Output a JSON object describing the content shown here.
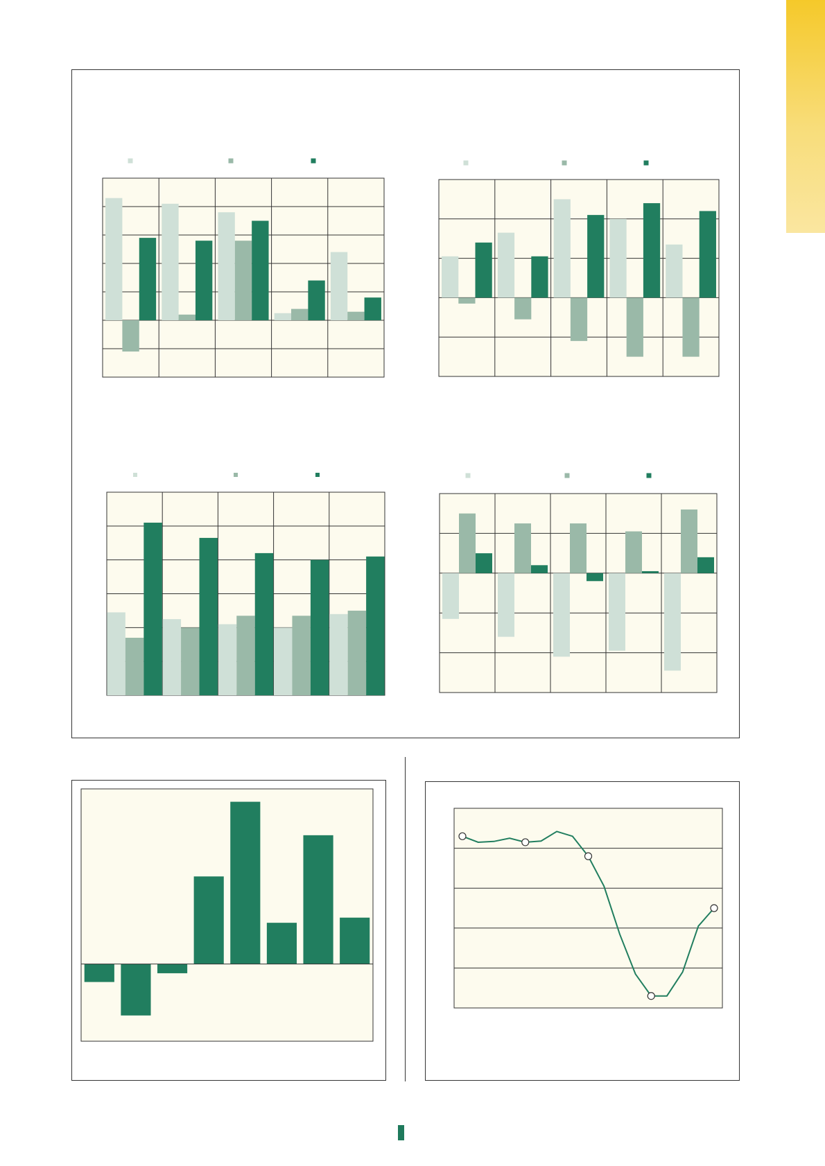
{
  "colors": {
    "plot_bg": "#fdfbee",
    "series_light": "#cfe0d7",
    "series_mid": "#9ab9a8",
    "series_dark": "#217e5f",
    "grid": "#333333",
    "side_tab": "#f5c92a"
  },
  "chart_data": [
    {
      "type": "bar",
      "ylim": [
        -2,
        5
      ],
      "grid": true,
      "legend": "top",
      "categories": [
        "",
        "",
        "",
        "",
        ""
      ],
      "series": [
        {
          "color": "series_light",
          "values": [
            4.3,
            4.1,
            3.8,
            0.25,
            2.4
          ]
        },
        {
          "color": "series_mid",
          "values": [
            -1.1,
            0.2,
            2.8,
            0.4,
            0.3
          ]
        },
        {
          "color": "series_dark",
          "values": [
            2.9,
            2.8,
            3.5,
            1.4,
            0.8
          ]
        }
      ]
    },
    {
      "type": "bar",
      "ylim": [
        -2,
        3
      ],
      "grid": true,
      "legend": "top",
      "categories": [
        "",
        "",
        "",
        "",
        ""
      ],
      "series": [
        {
          "color": "series_light",
          "values": [
            1.05,
            1.65,
            2.5,
            2.0,
            1.35
          ]
        },
        {
          "color": "series_mid",
          "values": [
            -0.15,
            -0.55,
            -1.1,
            -1.5,
            -1.5
          ]
        },
        {
          "color": "series_dark",
          "values": [
            1.4,
            1.05,
            2.1,
            2.4,
            2.2
          ]
        }
      ]
    },
    {
      "type": "bar",
      "ylim": [
        0,
        6
      ],
      "grid": true,
      "legend": "top",
      "categories": [
        "",
        "",
        "",
        "",
        ""
      ],
      "series": [
        {
          "color": "series_light",
          "values": [
            2.45,
            2.25,
            2.1,
            2.0,
            2.4
          ]
        },
        {
          "color": "series_mid",
          "values": [
            1.7,
            2.0,
            2.35,
            2.35,
            2.5
          ]
        },
        {
          "color": "series_dark",
          "values": [
            5.1,
            4.65,
            4.2,
            4.0,
            4.1
          ]
        }
      ]
    },
    {
      "type": "bar",
      "ylim": [
        -3,
        2
      ],
      "grid": true,
      "legend": "top",
      "categories": [
        "",
        "",
        "",
        "",
        ""
      ],
      "series": [
        {
          "color": "series_light",
          "values": [
            -1.15,
            -1.6,
            -2.1,
            -1.95,
            -2.45
          ]
        },
        {
          "color": "series_mid",
          "values": [
            1.5,
            1.25,
            1.25,
            1.05,
            1.6
          ]
        },
        {
          "color": "series_dark",
          "values": [
            0.5,
            0.2,
            -0.2,
            0.05,
            0.4
          ]
        }
      ]
    },
    {
      "type": "bar",
      "ylim": [
        -1.5,
        3.4
      ],
      "grid": false,
      "categories": [
        "",
        "",
        "",
        "",
        "",
        "",
        "",
        ""
      ],
      "series": [
        {
          "color": "series_dark",
          "values": [
            -0.35,
            -1.0,
            -0.18,
            1.7,
            3.15,
            0.8,
            2.5,
            0.9
          ]
        }
      ]
    },
    {
      "type": "line",
      "ylim": [
        0,
        5
      ],
      "grid": true,
      "series": [
        {
          "color": "series_dark",
          "x": [
            0,
            1,
            2,
            3,
            4,
            5,
            6,
            7,
            8,
            9,
            10,
            11,
            12,
            13,
            14,
            15,
            16
          ],
          "values": [
            4.3,
            4.15,
            4.17,
            4.25,
            4.15,
            4.18,
            4.42,
            4.3,
            3.8,
            3.05,
            1.85,
            0.85,
            0.3,
            0.3,
            0.9,
            2.05,
            2.5
          ],
          "markers": [
            0,
            4,
            8,
            12,
            16
          ]
        }
      ]
    }
  ]
}
